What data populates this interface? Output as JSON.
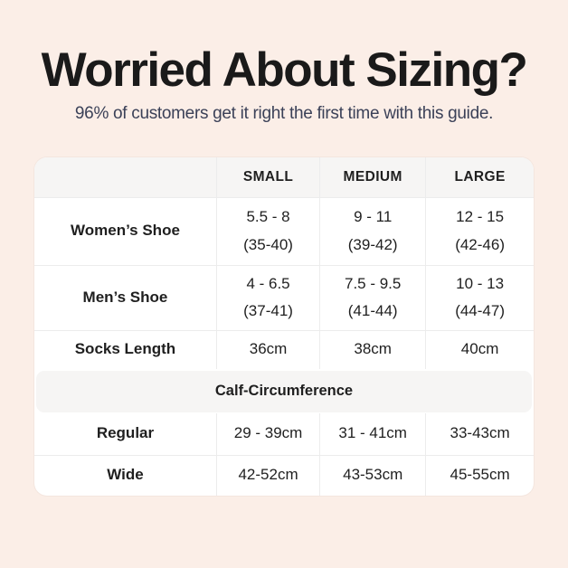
{
  "colors": {
    "background": "#fbeee7",
    "card": "#ffffff",
    "band": "#f6f5f4",
    "divider": "#ececec",
    "title": "#1a1a1a",
    "subtitle": "#3b4158",
    "text": "#1f1f1f"
  },
  "header": {
    "title": "Worried About Sizing?",
    "subtitle": "96% of customers get it right the first time with this guide."
  },
  "table": {
    "columns": [
      "SMALL",
      "MEDIUM",
      "LARGE"
    ],
    "rows": [
      {
        "label": "Women’s Shoe",
        "small": [
          "5.5 - 8",
          "(35-40)"
        ],
        "medium": [
          "9 - 11",
          "(39-42)"
        ],
        "large": [
          "12 - 15",
          "(42-46)"
        ]
      },
      {
        "label": "Men’s Shoe",
        "small": [
          "4 - 6.5",
          "(37-41)"
        ],
        "medium": [
          "7.5 - 9.5",
          "(41-44)"
        ],
        "large": [
          "10 - 13",
          "(44-47)"
        ]
      },
      {
        "label": "Socks Length",
        "small": [
          "36cm"
        ],
        "medium": [
          "38cm"
        ],
        "large": [
          "40cm"
        ]
      }
    ],
    "section": {
      "header": "Calf-Circumference",
      "rows": [
        {
          "label": "Regular",
          "small": "29 - 39cm",
          "medium": "31 - 41cm",
          "large": "33-43cm"
        },
        {
          "label": "Wide",
          "small": "42-52cm",
          "medium": "43-53cm",
          "large": "45-55cm"
        }
      ]
    }
  }
}
